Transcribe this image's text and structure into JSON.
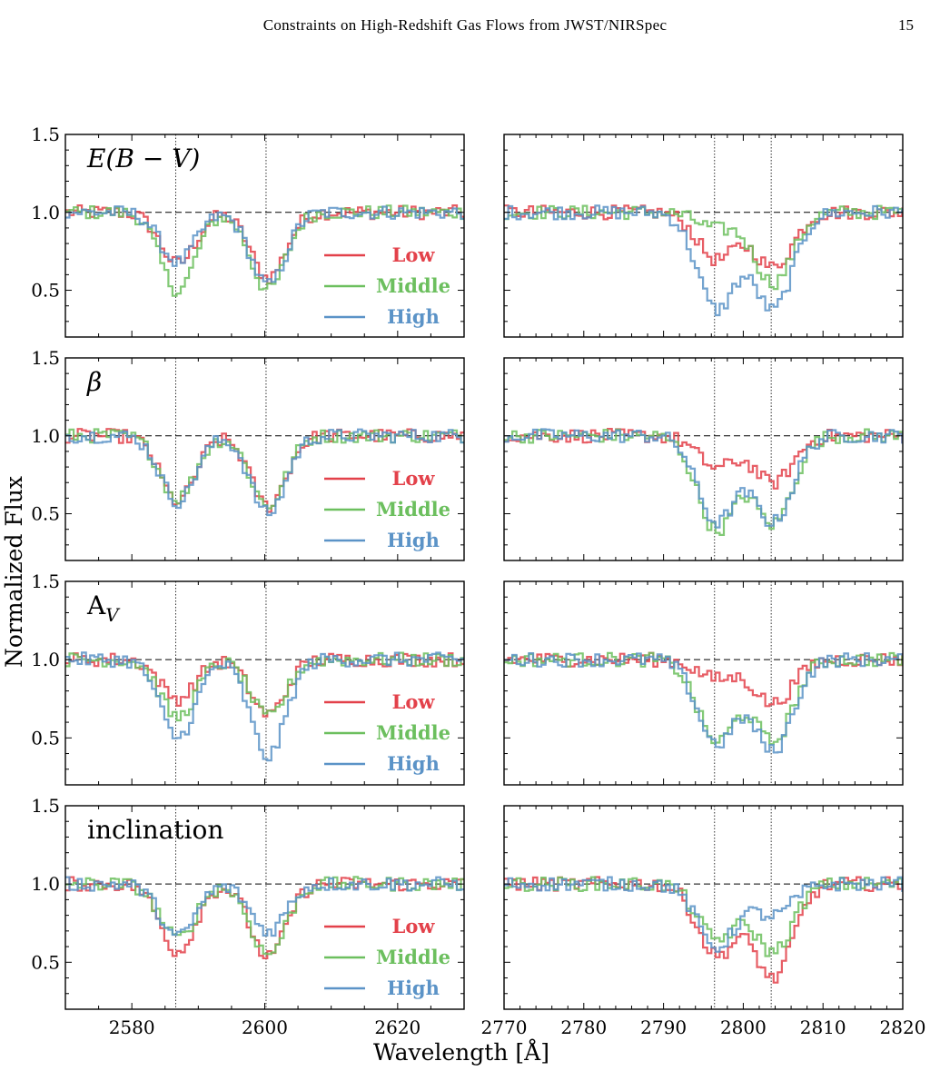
{
  "running_head": {
    "title": "Constraints on High-Redshift Gas Flows from JWST/NIRSpec",
    "page_number": "15"
  },
  "figure": {
    "ylabel": "Normalized Flux",
    "xlabel": "Wavelength [Å]",
    "legend": [
      "Low",
      "Middle",
      "High"
    ],
    "colors": {
      "Low": "#e3414a",
      "Middle": "#6cbf5e",
      "High": "#5b93c7"
    }
  },
  "chart_data": {
    "type": "line",
    "ylim": [
      0.2,
      1.5
    ],
    "y_ticks": [
      "0.5",
      "1.0",
      "1.5"
    ],
    "left_xlim": [
      2570,
      2630
    ],
    "left_x_ticks": [
      "2580",
      "2600",
      "2620"
    ],
    "right_xlim": [
      2770,
      2820
    ],
    "right_x_ticks": [
      "2770",
      "2780",
      "2790",
      "2800",
      "2810",
      "2820"
    ],
    "reference_line_y": 1.0,
    "left_vlines": [
      2586.6,
      2600.2
    ],
    "right_vlines": [
      2796.4,
      2803.5
    ],
    "rows": [
      {
        "label": "E(B − V)",
        "left": {
          "Low": {
            "depths": [
              0.33,
              0.42
            ]
          },
          "Middle": {
            "depths": [
              0.5,
              0.5
            ]
          },
          "High": {
            "depths": [
              0.32,
              0.47
            ]
          }
        },
        "right": {
          "Low": {
            "depths": [
              0.3,
              0.35
            ]
          },
          "Middle": {
            "depths": [
              0.1,
              0.45
            ]
          },
          "High": {
            "depths": [
              0.62,
              0.62
            ]
          }
        }
      },
      {
        "label": "β",
        "left": {
          "Low": {
            "depths": [
              0.42,
              0.45
            ]
          },
          "Middle": {
            "depths": [
              0.4,
              0.45
            ]
          },
          "High": {
            "depths": [
              0.42,
              0.5
            ]
          }
        },
        "right": {
          "Low": {
            "depths": [
              0.2,
              0.3
            ]
          },
          "Middle": {
            "depths": [
              0.6,
              0.56
            ]
          },
          "High": {
            "depths": [
              0.55,
              0.55
            ]
          }
        }
      },
      {
        "label": "A_V",
        "left": {
          "Low": {
            "depths": [
              0.25,
              0.35
            ]
          },
          "Middle": {
            "depths": [
              0.37,
              0.37
            ]
          },
          "High": {
            "depths": [
              0.5,
              0.62
            ]
          }
        },
        "right": {
          "Low": {
            "depths": [
              0.12,
              0.28
            ]
          },
          "Middle": {
            "depths": [
              0.52,
              0.52
            ]
          },
          "High": {
            "depths": [
              0.53,
              0.58
            ]
          }
        }
      },
      {
        "label": "inclination",
        "left": {
          "Low": {
            "depths": [
              0.43,
              0.47
            ]
          },
          "Middle": {
            "depths": [
              0.35,
              0.45
            ]
          },
          "High": {
            "depths": [
              0.34,
              0.3
            ]
          }
        },
        "right": {
          "Low": {
            "depths": [
              0.45,
              0.6
            ]
          },
          "Middle": {
            "depths": [
              0.35,
              0.43
            ]
          },
          "High": {
            "depths": [
              0.4,
              0.2
            ]
          }
        }
      }
    ]
  }
}
